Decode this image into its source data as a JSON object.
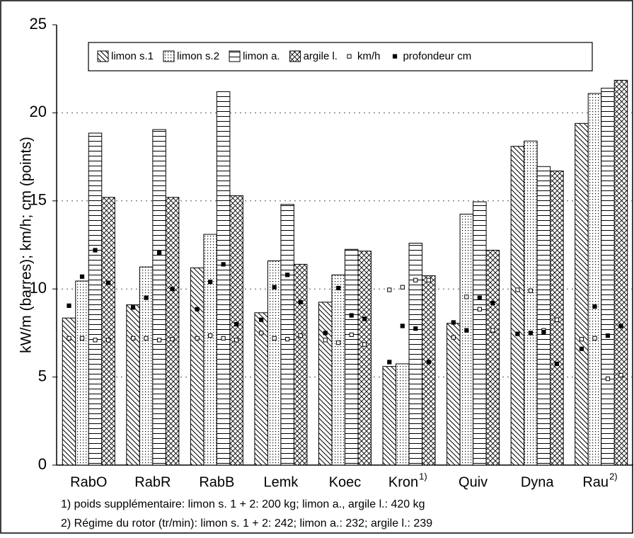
{
  "chart_data": {
    "type": "bar",
    "y_label": "kW/m (barres); km/h; cm (points)",
    "categories": [
      "RabO",
      "RabR",
      "RabB",
      "Lemk",
      "Koec",
      "Kron",
      "Quiv",
      "Dyna",
      "Rau"
    ],
    "category_superscripts": {
      "5": "1)",
      "8": "2)"
    },
    "series": [
      {
        "name": "limon s.1",
        "pattern": "diagonal",
        "color": "#000000",
        "values": [
          8.35,
          9.1,
          11.2,
          8.65,
          9.25,
          5.6,
          8.05,
          18.1,
          19.4
        ]
      },
      {
        "name": "limon s.2",
        "pattern": "dotted",
        "color": "#000000",
        "values": [
          10.45,
          11.25,
          13.1,
          11.6,
          10.8,
          5.75,
          14.25,
          18.4,
          21.1
        ]
      },
      {
        "name": "limon a.",
        "pattern": "horizontal",
        "color": "#000000",
        "values": [
          18.85,
          19.05,
          21.2,
          14.8,
          12.25,
          12.6,
          14.95,
          16.95,
          21.4
        ]
      },
      {
        "name": "argile l.",
        "pattern": "crosshatch",
        "color": "#000000",
        "values": [
          15.2,
          15.2,
          15.3,
          11.4,
          12.15,
          10.75,
          12.2,
          16.7,
          21.85
        ]
      }
    ],
    "points": [
      {
        "name": "km/h",
        "marker": "open-square",
        "color": "#000000",
        "values": [
          [
            7.2,
            7.2,
            7.1,
            7.1
          ],
          [
            7.2,
            7.2,
            7.1,
            7.15
          ],
          [
            7.2,
            7.35,
            7.2,
            7.1
          ],
          [
            7.5,
            7.2,
            7.15,
            7.35
          ],
          [
            7.1,
            6.95,
            7.4,
            6.85
          ],
          [
            9.95,
            10.1,
            10.5,
            10.5
          ],
          [
            7.25,
            9.55,
            8.85,
            7.65
          ],
          [
            9.95,
            9.9,
            7.65,
            8.25
          ],
          [
            7.15,
            7.2,
            4.9,
            5.1
          ]
        ]
      },
      {
        "name": "profondeur cm",
        "marker": "filled-square",
        "color": "#000000",
        "values": [
          [
            9.05,
            10.7,
            12.2,
            10.35
          ],
          [
            8.95,
            9.5,
            12.05,
            10.0
          ],
          [
            8.85,
            10.4,
            11.4,
            8.0
          ],
          [
            8.25,
            10.1,
            10.8,
            9.25
          ],
          [
            7.5,
            10.05,
            8.5,
            8.3
          ],
          [
            5.85,
            7.9,
            7.75,
            5.85
          ],
          [
            8.1,
            7.65,
            9.5,
            9.2
          ],
          [
            7.45,
            7.5,
            7.55,
            5.75
          ],
          [
            6.6,
            9.0,
            7.35,
            7.9
          ]
        ]
      }
    ],
    "ylim": [
      0,
      25
    ],
    "yticks": [
      0,
      5,
      10,
      15,
      20,
      25
    ],
    "grid": true,
    "footnotes": [
      "1) poids supplémentaire: limon s. 1 + 2: 200 kg; limon a., argile l.: 420 kg",
      "2) Régime du rotor (tr/min): limon s. 1 + 2: 242; limon a.: 232; argile l.: 239"
    ]
  }
}
